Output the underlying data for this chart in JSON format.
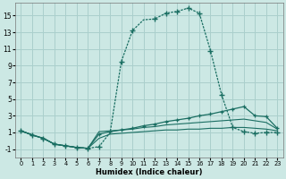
{
  "xlabel": "Humidex (Indice chaleur)",
  "bg_color": "#cce8e4",
  "grid_color": "#aacfcc",
  "line_color": "#1a6e62",
  "xlim": [
    -0.5,
    23.5
  ],
  "ylim": [
    -2,
    16.5
  ],
  "xticks": [
    0,
    1,
    2,
    3,
    4,
    5,
    6,
    7,
    8,
    9,
    10,
    11,
    12,
    13,
    14,
    15,
    16,
    17,
    18,
    19,
    20,
    21,
    22,
    23
  ],
  "yticks": [
    -1,
    1,
    3,
    5,
    7,
    9,
    11,
    13,
    15
  ],
  "line1_x": [
    0,
    1,
    2,
    3,
    4,
    5,
    6,
    7,
    8,
    9,
    10,
    11,
    12,
    13,
    14,
    15,
    16,
    17,
    18,
    19,
    20,
    21,
    22,
    23
  ],
  "line1_y": [
    1.2,
    0.7,
    0.3,
    -0.4,
    -0.6,
    -0.8,
    -0.9,
    -0.7,
    1.0,
    9.5,
    13.2,
    14.5,
    14.6,
    15.3,
    15.5,
    15.9,
    15.3,
    10.8,
    5.5,
    1.6,
    1.1,
    0.9,
    1.0,
    1.0
  ],
  "line1_marker_x": [
    0,
    1,
    2,
    3,
    4,
    5,
    6,
    7,
    9,
    10,
    12,
    13,
    14,
    15,
    16,
    17,
    18,
    19,
    20,
    21,
    22,
    23
  ],
  "line1_marker_y": [
    1.2,
    0.7,
    0.3,
    -0.4,
    -0.6,
    -0.8,
    -0.9,
    -0.7,
    9.5,
    13.2,
    14.6,
    15.3,
    15.5,
    15.9,
    15.3,
    10.8,
    5.5,
    1.6,
    1.1,
    0.9,
    1.0,
    1.0
  ],
  "line2_x": [
    0,
    1,
    2,
    3,
    4,
    5,
    6,
    7,
    8,
    9,
    10,
    11,
    12,
    13,
    14,
    15,
    16,
    17,
    18,
    19,
    20,
    21,
    22,
    23
  ],
  "line2_y": [
    1.2,
    0.7,
    0.3,
    -0.4,
    -0.6,
    -0.8,
    -0.9,
    0.8,
    1.1,
    1.3,
    1.5,
    1.8,
    2.0,
    2.3,
    2.5,
    2.7,
    3.0,
    3.2,
    3.5,
    3.8,
    4.1,
    3.0,
    2.9,
    1.5
  ],
  "line3_x": [
    0,
    1,
    2,
    3,
    4,
    5,
    6,
    7,
    8,
    9,
    10,
    11,
    12,
    13,
    14,
    15,
    16,
    17,
    18,
    19,
    20,
    21,
    22,
    23
  ],
  "line3_y": [
    1.2,
    0.7,
    0.3,
    -0.4,
    -0.6,
    -0.8,
    -0.9,
    1.1,
    1.2,
    1.3,
    1.4,
    1.6,
    1.7,
    1.9,
    2.0,
    2.1,
    2.2,
    2.3,
    2.4,
    2.5,
    2.6,
    2.4,
    2.2,
    1.4
  ],
  "line4_x": [
    0,
    1,
    2,
    3,
    4,
    5,
    6,
    7,
    8,
    9,
    10,
    11,
    12,
    13,
    14,
    15,
    16,
    17,
    18,
    19,
    20,
    21,
    22,
    23
  ],
  "line4_y": [
    1.2,
    0.7,
    0.3,
    -0.4,
    -0.6,
    -0.8,
    -0.9,
    0.3,
    0.8,
    0.9,
    1.0,
    1.1,
    1.2,
    1.3,
    1.3,
    1.4,
    1.4,
    1.5,
    1.5,
    1.6,
    1.6,
    1.5,
    1.4,
    1.2
  ]
}
